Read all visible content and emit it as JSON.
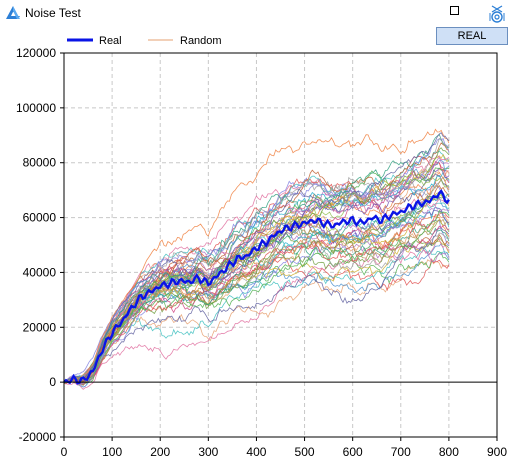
{
  "window": {
    "title": "Noise Test"
  },
  "toolbar": {
    "real_button_label": "REAL"
  },
  "icons": {
    "app": "app-logo-icon",
    "maximize": "maximize-icon",
    "settings": "settings-icon"
  },
  "colors": {
    "real": "#0a14e6",
    "random_legend": "#e6a070",
    "zero_line": "#000000",
    "grid": "#c8c8c8"
  },
  "chart_data": {
    "type": "line",
    "title": "",
    "xlabel": "",
    "ylabel": "",
    "xlim": [
      0,
      900
    ],
    "ylim": [
      -20000,
      120000
    ],
    "x_ticks": [
      "0",
      "100",
      "200",
      "300",
      "400",
      "500",
      "600",
      "700",
      "800",
      "900"
    ],
    "y_ticks": [
      "-20000",
      "0",
      "20000",
      "40000",
      "60000",
      "80000",
      "100000",
      "120000"
    ],
    "grid": true,
    "legend_position": "top-left",
    "legend": [
      "Real",
      "Random"
    ],
    "series": [
      {
        "name": "Real",
        "x": [
          0,
          20,
          40,
          60,
          80,
          100,
          120,
          140,
          160,
          180,
          200,
          220,
          240,
          260,
          280,
          300,
          320,
          340,
          360,
          380,
          400,
          420,
          440,
          460,
          480,
          500,
          520,
          540,
          560,
          580,
          600,
          620,
          640,
          660,
          680,
          700,
          720,
          740,
          760,
          780,
          800
        ],
        "values": [
          0,
          1000,
          500,
          4000,
          12000,
          18000,
          22000,
          27000,
          31000,
          33000,
          35000,
          36000,
          37000,
          36500,
          38000,
          36000,
          39000,
          42000,
          45000,
          46000,
          49000,
          51000,
          54000,
          56000,
          57000,
          58000,
          59000,
          58000,
          57000,
          58500,
          59000,
          58000,
          60000,
          59000,
          61000,
          62000,
          64000,
          65000,
          66000,
          69000,
          66000
        ]
      },
      {
        "name": "Random",
        "x_max": 800,
        "end_values_range": [
          42000,
          88000
        ]
      }
    ]
  }
}
